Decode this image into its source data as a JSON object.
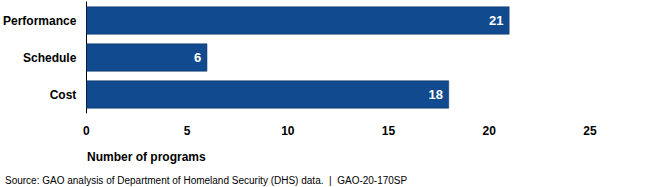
{
  "chart_data": {
    "type": "bar",
    "orientation": "horizontal",
    "categories": [
      "Performance",
      "Schedule",
      "Cost"
    ],
    "values": [
      21,
      6,
      18
    ],
    "color": "#124a8f",
    "xlabel": "Number of programs",
    "xlim": [
      0,
      25
    ],
    "xticks": [
      0,
      5,
      10,
      15,
      20,
      25
    ],
    "grid": false,
    "data_labels": true,
    "source": "Source: GAO analysis of Department of Homeland Security (DHS) data.  |  GAO-20-170SP"
  }
}
